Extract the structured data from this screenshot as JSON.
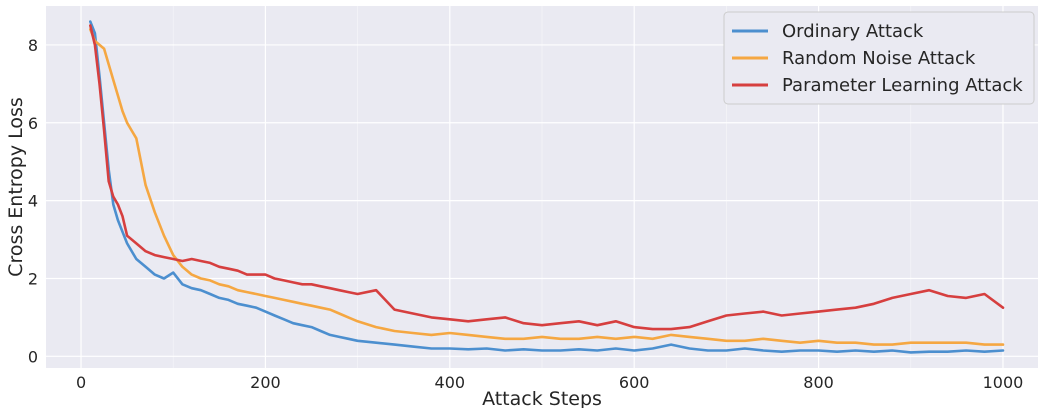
{
  "chart_data": {
    "type": "line",
    "title": "",
    "xlabel": "Attack Steps",
    "ylabel": "Cross Entropy Loss",
    "xlim": [
      -38,
      1038
    ],
    "ylim": [
      -0.3,
      9.0
    ],
    "xticks": [
      0,
      200,
      400,
      600,
      800,
      1000
    ],
    "yticks": [
      0,
      2,
      4,
      6,
      8
    ],
    "grid": true,
    "legend_position": "top-right",
    "background": "#eaeaf2",
    "series": [
      {
        "name": "Ordinary Attack",
        "color": "#4c8fcf",
        "x": [
          10,
          15,
          20,
          25,
          30,
          35,
          40,
          45,
          50,
          60,
          70,
          80,
          90,
          100,
          110,
          120,
          130,
          140,
          150,
          160,
          170,
          180,
          190,
          200,
          210,
          220,
          230,
          240,
          250,
          260,
          270,
          280,
          290,
          300,
          320,
          340,
          360,
          380,
          400,
          420,
          440,
          460,
          480,
          500,
          520,
          540,
          560,
          580,
          600,
          620,
          640,
          660,
          680,
          700,
          720,
          740,
          760,
          780,
          800,
          820,
          840,
          860,
          880,
          900,
          920,
          940,
          960,
          980,
          1000
        ],
        "y": [
          8.6,
          8.3,
          7.2,
          6.0,
          4.8,
          3.9,
          3.5,
          3.2,
          2.9,
          2.5,
          2.3,
          2.1,
          2.0,
          2.15,
          1.85,
          1.75,
          1.7,
          1.6,
          1.5,
          1.45,
          1.35,
          1.3,
          1.25,
          1.15,
          1.05,
          0.95,
          0.85,
          0.8,
          0.75,
          0.65,
          0.55,
          0.5,
          0.45,
          0.4,
          0.35,
          0.3,
          0.25,
          0.2,
          0.2,
          0.18,
          0.2,
          0.15,
          0.18,
          0.15,
          0.15,
          0.18,
          0.15,
          0.2,
          0.15,
          0.2,
          0.3,
          0.2,
          0.15,
          0.15,
          0.2,
          0.15,
          0.12,
          0.15,
          0.15,
          0.12,
          0.15,
          0.12,
          0.15,
          0.1,
          0.12,
          0.12,
          0.15,
          0.12,
          0.15
        ]
      },
      {
        "name": "Random Noise Attack",
        "color": "#f5a742",
        "x": [
          10,
          15,
          20,
          25,
          30,
          35,
          40,
          45,
          50,
          55,
          60,
          70,
          80,
          90,
          100,
          110,
          120,
          130,
          140,
          150,
          160,
          170,
          180,
          190,
          200,
          210,
          220,
          230,
          240,
          250,
          260,
          270,
          280,
          290,
          300,
          320,
          340,
          360,
          380,
          400,
          420,
          440,
          460,
          480,
          500,
          520,
          540,
          560,
          580,
          600,
          620,
          640,
          660,
          680,
          700,
          720,
          740,
          760,
          780,
          800,
          820,
          840,
          860,
          880,
          900,
          920,
          940,
          960,
          980,
          1000
        ],
        "y": [
          8.4,
          8.1,
          8.0,
          7.9,
          7.5,
          7.1,
          6.7,
          6.3,
          6.0,
          5.8,
          5.6,
          4.4,
          3.7,
          3.1,
          2.6,
          2.3,
          2.1,
          2.0,
          1.95,
          1.85,
          1.8,
          1.7,
          1.65,
          1.6,
          1.55,
          1.5,
          1.45,
          1.4,
          1.35,
          1.3,
          1.25,
          1.2,
          1.1,
          1.0,
          0.9,
          0.75,
          0.65,
          0.6,
          0.55,
          0.6,
          0.55,
          0.5,
          0.45,
          0.45,
          0.5,
          0.45,
          0.45,
          0.5,
          0.45,
          0.5,
          0.45,
          0.55,
          0.5,
          0.45,
          0.4,
          0.4,
          0.45,
          0.4,
          0.35,
          0.4,
          0.35,
          0.35,
          0.3,
          0.3,
          0.35,
          0.35,
          0.35,
          0.35,
          0.3,
          0.3
        ]
      },
      {
        "name": "Parameter Learning Attack",
        "color": "#d63f3f",
        "x": [
          10,
          15,
          20,
          25,
          30,
          35,
          40,
          45,
          50,
          60,
          70,
          80,
          90,
          100,
          110,
          120,
          130,
          140,
          150,
          160,
          170,
          180,
          190,
          200,
          210,
          220,
          230,
          240,
          250,
          260,
          270,
          280,
          290,
          300,
          320,
          340,
          360,
          380,
          400,
          420,
          440,
          460,
          480,
          500,
          520,
          540,
          560,
          580,
          600,
          620,
          640,
          660,
          680,
          700,
          720,
          740,
          760,
          780,
          800,
          820,
          840,
          860,
          880,
          900,
          920,
          940,
          960,
          980,
          1000
        ],
        "y": [
          8.5,
          8.0,
          7.0,
          5.8,
          4.5,
          4.1,
          3.9,
          3.6,
          3.1,
          2.9,
          2.7,
          2.6,
          2.55,
          2.5,
          2.45,
          2.5,
          2.45,
          2.4,
          2.3,
          2.25,
          2.2,
          2.1,
          2.1,
          2.1,
          2.0,
          1.95,
          1.9,
          1.85,
          1.85,
          1.8,
          1.75,
          1.7,
          1.65,
          1.6,
          1.7,
          1.2,
          1.1,
          1.0,
          0.95,
          0.9,
          0.95,
          1.0,
          0.85,
          0.8,
          0.85,
          0.9,
          0.8,
          0.9,
          0.75,
          0.7,
          0.7,
          0.75,
          0.9,
          1.05,
          1.1,
          1.15,
          1.05,
          1.1,
          1.15,
          1.2,
          1.25,
          1.35,
          1.5,
          1.6,
          1.7,
          1.55,
          1.5,
          1.6,
          1.25
        ]
      }
    ]
  }
}
